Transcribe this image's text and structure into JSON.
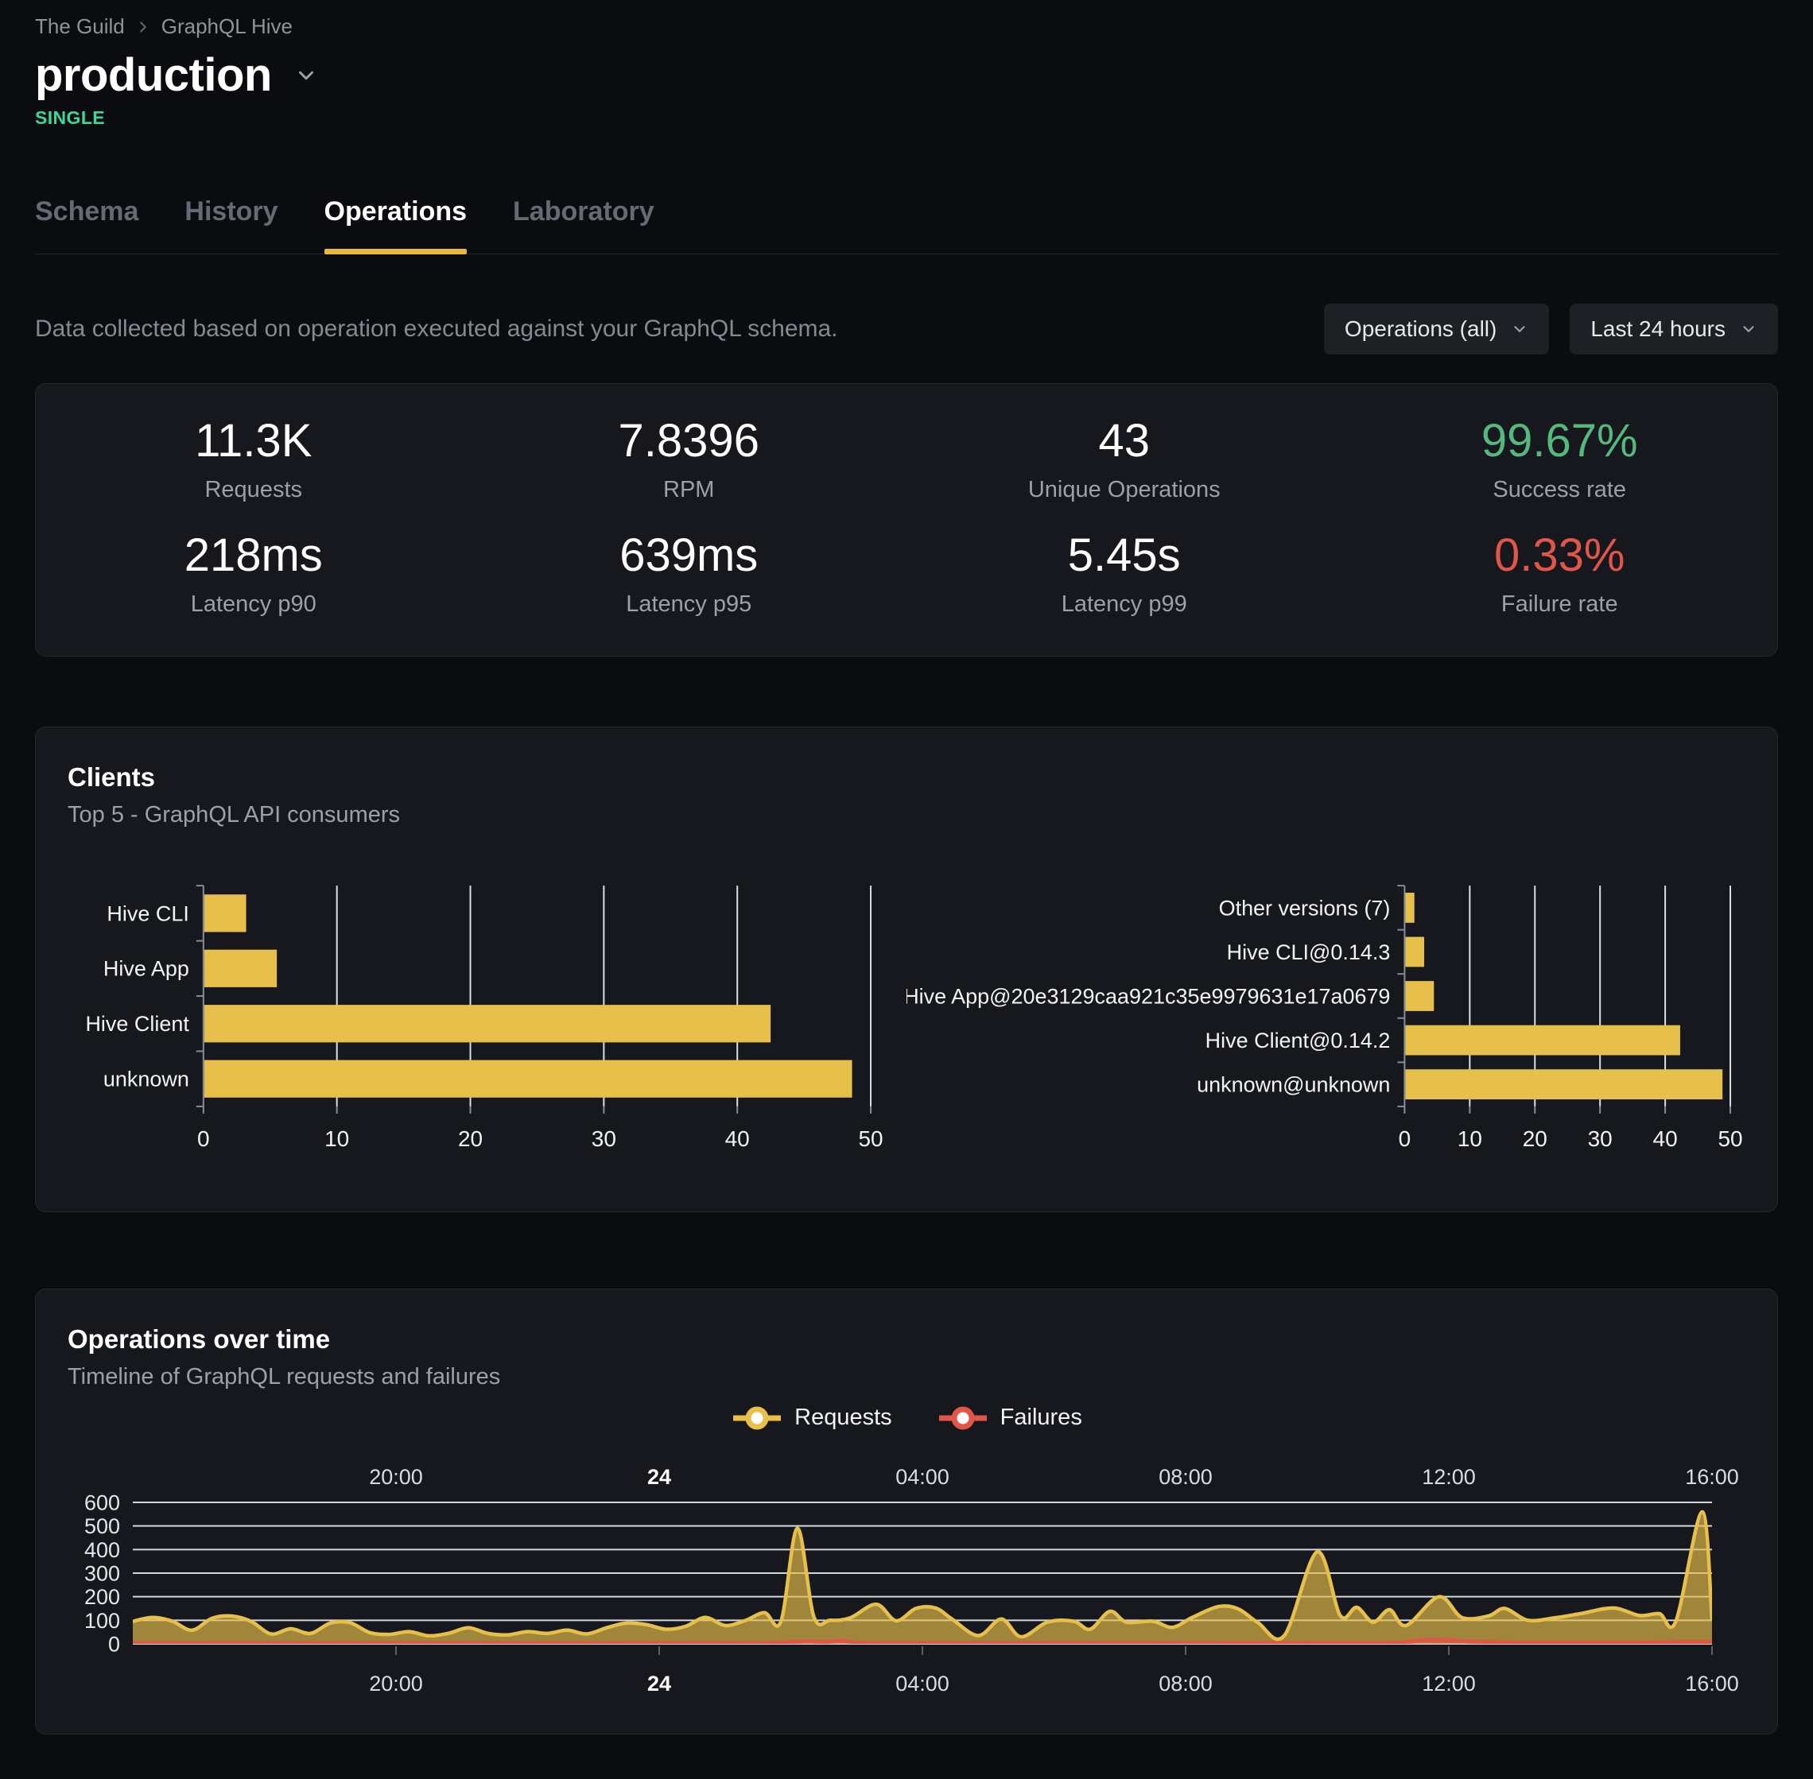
{
  "breadcrumb": {
    "items": [
      "The Guild",
      "GraphQL Hive"
    ]
  },
  "header": {
    "title": "production",
    "badge": "SINGLE"
  },
  "tabs": [
    {
      "label": "Schema",
      "active": false
    },
    {
      "label": "History",
      "active": false
    },
    {
      "label": "Operations",
      "active": true
    },
    {
      "label": "Laboratory",
      "active": false
    }
  ],
  "toolbar": {
    "description": "Data collected based on operation executed against your GraphQL schema.",
    "operations_filter": "Operations (all)",
    "time_filter": "Last 24 hours"
  },
  "stats": [
    {
      "value": "11.3K",
      "label": "Requests"
    },
    {
      "value": "7.8396",
      "label": "RPM"
    },
    {
      "value": "43",
      "label": "Unique Operations"
    },
    {
      "value": "99.67%",
      "label": "Success rate",
      "tone": "green"
    },
    {
      "value": "218ms",
      "label": "Latency p90"
    },
    {
      "value": "639ms",
      "label": "Latency p95"
    },
    {
      "value": "5.45s",
      "label": "Latency p99"
    },
    {
      "value": "0.33%",
      "label": "Failure rate",
      "tone": "red"
    }
  ],
  "clients": {
    "title": "Clients",
    "subtitle": "Top 5 - GraphQL API consumers"
  },
  "timeline": {
    "title": "Operations over time",
    "subtitle": "Timeline of GraphQL requests and failures"
  },
  "colors": {
    "accent": "#e7c04b",
    "underline": "#e9b93c",
    "mint": "#3fd69a",
    "green": "#55b97f",
    "red": "#e0564b",
    "page-bg": "#0b0c0f",
    "card-bg": "#17181d",
    "card-border": "#26282e"
  },
  "chart_data": [
    {
      "id": "clients-top5",
      "type": "bar",
      "orientation": "horizontal",
      "categories": [
        "Hive CLI",
        "Hive App",
        "Hive Client",
        "unknown"
      ],
      "values": [
        3.2,
        5.5,
        42.5,
        48.6
      ],
      "xlim": [
        0,
        50
      ],
      "xticks": [
        0,
        10,
        20,
        30,
        40,
        50
      ],
      "grid": true,
      "bar_color": "#e7c04b"
    },
    {
      "id": "client-versions-top5",
      "type": "bar",
      "orientation": "horizontal",
      "categories": [
        "Other versions (7)",
        "Hive CLI@0.14.3",
        "Hive App@20e3129caa921c35e9979631e17a0679",
        "Hive Client@0.14.2",
        "unknown@unknown"
      ],
      "values": [
        1.5,
        3,
        4.5,
        42.3,
        48.8
      ],
      "xlim": [
        0,
        50
      ],
      "xticks": [
        0,
        10,
        20,
        30,
        40,
        50
      ],
      "grid": true,
      "bar_color": "#e7c04b"
    },
    {
      "id": "operations-over-time",
      "type": "area",
      "title": "Operations over time",
      "x_axis": {
        "range_hours": 24,
        "start_label": "16:00",
        "tick_positions_hours": [
          4,
          8,
          12,
          16,
          20,
          24
        ],
        "tick_labels": [
          "20:00",
          "24",
          "04:00",
          "08:00",
          "12:00",
          "16:00"
        ],
        "bold_label": "24",
        "labels_shown": "top and bottom"
      },
      "ylim": [
        0,
        600
      ],
      "yticks": [
        0,
        100,
        200,
        300,
        400,
        500,
        600
      ],
      "grid": "horizontal",
      "legend_position": "top-center",
      "series": [
        {
          "name": "Requests",
          "color": "#e7c04b",
          "points": [
            [
              0,
              95
            ],
            [
              0.3,
              112
            ],
            [
              0.6,
              96
            ],
            [
              0.9,
              58
            ],
            [
              1.2,
              108
            ],
            [
              1.5,
              118
            ],
            [
              1.8,
              95
            ],
            [
              2.1,
              42
            ],
            [
              2.4,
              64
            ],
            [
              2.7,
              44
            ],
            [
              3.0,
              88
            ],
            [
              3.3,
              90
            ],
            [
              3.6,
              48
            ],
            [
              3.9,
              40
            ],
            [
              4.2,
              52
            ],
            [
              4.5,
              34
            ],
            [
              4.8,
              45
            ],
            [
              5.1,
              68
            ],
            [
              5.4,
              44
            ],
            [
              5.7,
              38
            ],
            [
              6.0,
              52
            ],
            [
              6.3,
              44
            ],
            [
              6.6,
              58
            ],
            [
              6.9,
              42
            ],
            [
              7.2,
              68
            ],
            [
              7.5,
              88
            ],
            [
              7.8,
              82
            ],
            [
              8.1,
              62
            ],
            [
              8.4,
              74
            ],
            [
              8.7,
              112
            ],
            [
              9.0,
              78
            ],
            [
              9.3,
              98
            ],
            [
              9.6,
              132
            ],
            [
              9.85,
              95
            ],
            [
              10.1,
              490
            ],
            [
              10.35,
              115
            ],
            [
              10.6,
              100
            ],
            [
              10.9,
              110
            ],
            [
              11.3,
              168
            ],
            [
              11.6,
              98
            ],
            [
              11.9,
              150
            ],
            [
              12.2,
              152
            ],
            [
              12.45,
              105
            ],
            [
              12.85,
              35
            ],
            [
              13.2,
              105
            ],
            [
              13.5,
              30
            ],
            [
              13.9,
              92
            ],
            [
              14.3,
              96
            ],
            [
              14.55,
              62
            ],
            [
              14.85,
              138
            ],
            [
              15.1,
              92
            ],
            [
              15.5,
              96
            ],
            [
              15.8,
              70
            ],
            [
              16.1,
              112
            ],
            [
              16.5,
              158
            ],
            [
              16.8,
              148
            ],
            [
              17.1,
              90
            ],
            [
              17.5,
              35
            ],
            [
              18.0,
              390
            ],
            [
              18.35,
              120
            ],
            [
              18.6,
              155
            ],
            [
              18.85,
              92
            ],
            [
              19.1,
              145
            ],
            [
              19.35,
              78
            ],
            [
              19.85,
              200
            ],
            [
              20.2,
              112
            ],
            [
              20.6,
              118
            ],
            [
              20.85,
              150
            ],
            [
              21.2,
              100
            ],
            [
              21.6,
              110
            ],
            [
              22.0,
              128
            ],
            [
              22.5,
              152
            ],
            [
              22.9,
              120
            ],
            [
              23.2,
              128
            ],
            [
              23.45,
              96
            ],
            [
              23.85,
              560
            ],
            [
              24,
              100
            ]
          ]
        },
        {
          "name": "Failures",
          "color": "#e0564b",
          "points": [
            [
              0,
              3
            ],
            [
              2,
              3
            ],
            [
              4,
              3
            ],
            [
              6,
              3
            ],
            [
              8,
              3
            ],
            [
              9.5,
              3
            ],
            [
              10.2,
              10
            ],
            [
              10.5,
              8
            ],
            [
              10.8,
              12
            ],
            [
              11.1,
              4
            ],
            [
              12,
              3
            ],
            [
              14,
              3
            ],
            [
              16,
              3
            ],
            [
              18,
              4
            ],
            [
              19.2,
              5
            ],
            [
              19.6,
              16
            ],
            [
              19.9,
              18
            ],
            [
              20.3,
              10
            ],
            [
              21,
              6
            ],
            [
              22,
              5
            ],
            [
              23,
              6
            ],
            [
              23.6,
              8
            ],
            [
              24,
              8
            ]
          ]
        }
      ]
    }
  ]
}
